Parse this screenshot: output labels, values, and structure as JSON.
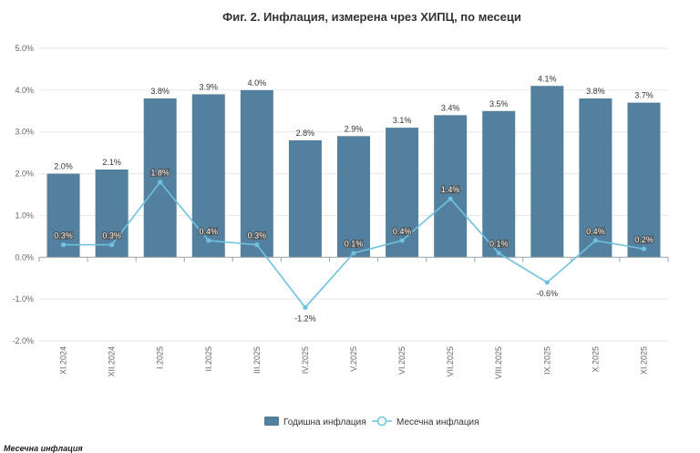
{
  "chart_data": {
    "type": "bar",
    "title": "Фиг. 2. Инфлация, измерена чрез ХИПЦ, по месеци",
    "categories": [
      "XI.2024",
      "XII.2024",
      "I.2025",
      "II.2025",
      "III.2025",
      "IV.2025",
      "V.2025",
      "VI.2025",
      "VII.2025",
      "VIII.2025",
      "IX.2025",
      "X.2025",
      "XI.2025"
    ],
    "ylim": [
      -2.0,
      5.0
    ],
    "yticks": [
      -2.0,
      -1.0,
      0.0,
      1.0,
      2.0,
      3.0,
      4.0,
      5.0
    ],
    "ytick_labels": [
      "-2.0%",
      "-1.0%",
      "0.0%",
      "1.0%",
      "2.0%",
      "3.0%",
      "4.0%",
      "5.0%"
    ],
    "series": [
      {
        "name": "Годишна инфлация",
        "type": "bar",
        "color": "#52809e",
        "values": [
          2.0,
          2.1,
          3.8,
          3.9,
          4.0,
          2.8,
          2.9,
          3.1,
          3.4,
          3.5,
          4.1,
          3.8,
          3.7
        ],
        "labels": [
          "2.0%",
          "2.1%",
          "3.8%",
          "3.9%",
          "4.0%",
          "2.8%",
          "2.9%",
          "3.1%",
          "3.4%",
          "3.5%",
          "4.1%",
          "3.8%",
          "3.7%"
        ]
      },
      {
        "name": "Месечна инфлация",
        "type": "line",
        "color": "#6ec2e0",
        "values": [
          0.3,
          0.3,
          1.8,
          0.4,
          0.3,
          -1.2,
          0.1,
          0.4,
          1.4,
          0.1,
          -0.6,
          0.4,
          0.2
        ],
        "labels": [
          "0.3%",
          "0.3%",
          "1.8%",
          "0.4%",
          "0.3%",
          "-1.2%",
          "0.1%",
          "0.4%",
          "1.4%",
          "0.1%",
          "-0.6%",
          "0.4%",
          "0.2%"
        ]
      }
    ],
    "legend_position": "bottom-center",
    "grid": true
  },
  "footnote": "Месечна инфлация"
}
